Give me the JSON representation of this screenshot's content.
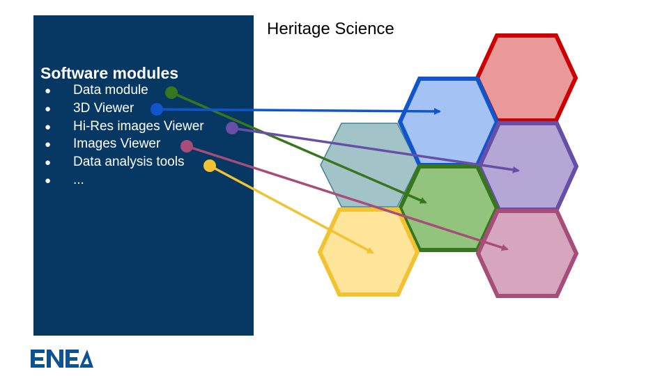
{
  "title": "Heritage Science",
  "panel": {
    "heading": "Software modules",
    "items": [
      {
        "label": "Data module",
        "color": "#38761d"
      },
      {
        "label": "3D Viewer",
        "color": "#1155cc"
      },
      {
        "label": "Hi-Res images Viewer",
        "color": "#674ea7"
      },
      {
        "label": "Images Viewer",
        "color": "#a64d79"
      },
      {
        "label": "Data analysis tools",
        "color": "#f1c232"
      },
      {
        "label": "...",
        "color": null
      }
    ],
    "bullet": "●"
  },
  "hexagons": [
    {
      "module": "Data module",
      "fill": "#93c47d",
      "stroke": "#38761d"
    },
    {
      "module": "3D Viewer",
      "fill": "#a4c2f4",
      "stroke": "#1155cc"
    },
    {
      "module": "Hi-Res images Viewer",
      "fill": "#b4a7d6",
      "stroke": "#674ea7"
    },
    {
      "module": "Images Viewer",
      "fill": "#d5a6bd",
      "stroke": "#a64d79"
    },
    {
      "module": "Data analysis tools",
      "fill": "#ffe599",
      "stroke": "#f1c232"
    },
    {
      "module": "unassigned",
      "fill": "#ea9999",
      "stroke": "#cc0000"
    },
    {
      "module": "unassigned",
      "fill": "#a2c4c9",
      "stroke": "#45818e"
    }
  ],
  "logo": {
    "text": "ENEA",
    "color": "#0b5394"
  }
}
